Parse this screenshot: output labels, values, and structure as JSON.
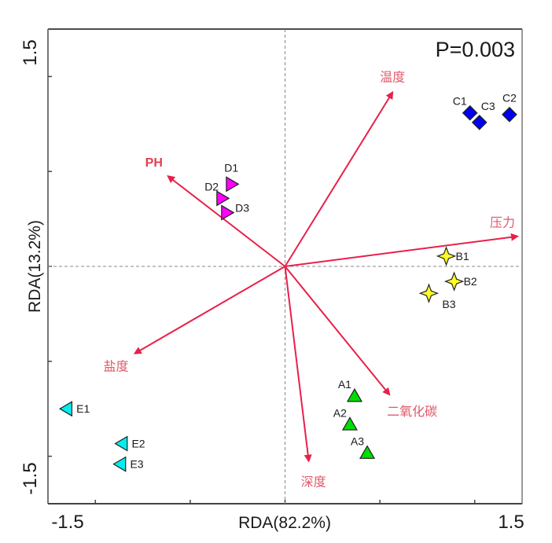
{
  "chart_data": {
    "type": "scatter",
    "subtype": "rda-biplot",
    "annotation": "P=0.003",
    "xlabel": "RDA(82.2%)",
    "ylabel": "RDA(13.2%)",
    "xlim": [
      -1.5,
      1.5
    ],
    "ylim": [
      -1.5,
      1.5
    ],
    "x_tick_labels": [
      {
        "value": -1.5,
        "label": "-1.5"
      },
      {
        "value": 1.5,
        "label": "1.5"
      }
    ],
    "y_tick_labels": [
      {
        "value": 1.5,
        "label": "1.5"
      },
      {
        "value": -1.5,
        "label": "-1.5"
      }
    ],
    "minor_ticks": [
      -1.2,
      -0.6,
      0,
      0.6,
      1.2
    ],
    "zero_lines": true,
    "grid": false,
    "arrow_color": "#e8204a",
    "env_vectors": [
      {
        "name": "温度",
        "x": 0.68,
        "y": 1.1,
        "label_pos": "top"
      },
      {
        "name": "PH",
        "x": -0.74,
        "y": 0.57,
        "label_pos": "top-left",
        "bold": true
      },
      {
        "name": "压力",
        "x": 1.47,
        "y": 0.19,
        "label_pos": "top"
      },
      {
        "name": "盐度",
        "x": -0.95,
        "y": -0.55,
        "label_pos": "bottom-left"
      },
      {
        "name": "二氧化碳",
        "x": 0.66,
        "y": -0.81,
        "label_pos": "bottom-right"
      },
      {
        "name": "深度",
        "x": 0.15,
        "y": -1.23,
        "label_pos": "bottom"
      }
    ],
    "series": [
      {
        "name": "A",
        "marker": "triangle-up",
        "color": "#00dd00",
        "points": [
          {
            "label": "A1",
            "x": 0.44,
            "y": -0.82,
            "label_pos": "top-left"
          },
          {
            "label": "A2",
            "x": 0.41,
            "y": -1.0,
            "label_pos": "top-left"
          },
          {
            "label": "A3",
            "x": 0.52,
            "y": -1.18,
            "label_pos": "top-left"
          }
        ]
      },
      {
        "name": "B",
        "marker": "star4",
        "color": "#ffff22",
        "points": [
          {
            "label": "B1",
            "x": 1.02,
            "y": 0.065,
            "label_pos": "right"
          },
          {
            "label": "B2",
            "x": 1.07,
            "y": -0.095,
            "label_pos": "right"
          },
          {
            "label": "B3",
            "x": 0.91,
            "y": -0.17,
            "label_pos": "bottom-right"
          }
        ]
      },
      {
        "name": "C",
        "marker": "diamond",
        "color": "#0000ee",
        "points": [
          {
            "label": "C1",
            "x": 1.17,
            "y": 0.97,
            "label_pos": "top-left"
          },
          {
            "label": "C3",
            "x": 1.23,
            "y": 0.91,
            "label_pos": "top-right"
          },
          {
            "label": "C2",
            "x": 1.42,
            "y": 0.96,
            "label_pos": "top"
          }
        ]
      },
      {
        "name": "D",
        "marker": "triangle-right",
        "color": "#ff00ff",
        "points": [
          {
            "label": "D1",
            "x": -0.34,
            "y": 0.52,
            "label_pos": "top"
          },
          {
            "label": "D2",
            "x": -0.4,
            "y": 0.43,
            "label_pos": "top-left"
          },
          {
            "label": "D3",
            "x": -0.37,
            "y": 0.34,
            "label_pos": "top-right"
          }
        ]
      },
      {
        "name": "E",
        "marker": "triangle-left",
        "color": "#00eeee",
        "points": [
          {
            "label": "E1",
            "x": -1.38,
            "y": -0.9,
            "label_pos": "right"
          },
          {
            "label": "E2",
            "x": -1.03,
            "y": -1.12,
            "label_pos": "right"
          },
          {
            "label": "E3",
            "x": -1.04,
            "y": -1.25,
            "label_pos": "right"
          }
        ]
      }
    ]
  }
}
